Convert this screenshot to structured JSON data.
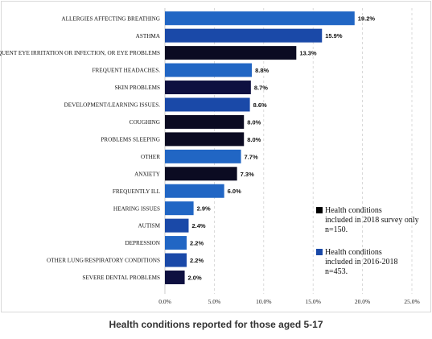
{
  "caption": "Health conditions reported for those aged 5-17",
  "chart_data": {
    "type": "bar",
    "orientation": "horizontal",
    "categories": [
      "ALLERGIES AFFECTING BREATHING",
      "ASTHMA",
      "FREQUENT EYE IRRITATION OR INFECTION, OR EYE PROBLEMS",
      "FREQUENT HEADACHES.",
      "SKIN PROBLEMS",
      "DEVELOPMENT/LEARNING ISSUES.",
      "COUGHING",
      "PROBLEMS SLEEPING",
      "OTHER",
      "ANXIETY",
      "FREQUENTLY ILL",
      "HEARING ISSUES",
      "AUTISM",
      "DEPRESSION",
      "OTHER LUNG/RESPIRATORY CONDITIONS",
      "SEVERE DENTAL PROBLEMS"
    ],
    "values": [
      19.2,
      15.9,
      13.3,
      8.8,
      8.7,
      8.6,
      8.0,
      8.0,
      7.7,
      7.3,
      6.0,
      2.9,
      2.4,
      2.2,
      2.2,
      2.0
    ],
    "value_labels": [
      "19.2%",
      "15.9%",
      "13.3%",
      "8.8%",
      "8.7%",
      "8.6%",
      "8.0%",
      "8.0%",
      "7.7%",
      "7.3%",
      "6.0%",
      "2.9%",
      "2.4%",
      "2.2%",
      "2.2%",
      "2.0%"
    ],
    "bar_colors": [
      "#2166c4",
      "#1a49a8",
      "#0b0b22",
      "#2166c4",
      "#0e1040",
      "#1a49a8",
      "#0b0b22",
      "#0b0b22",
      "#2166c4",
      "#0b0b22",
      "#2166c4",
      "#2166c4",
      "#1a49a8",
      "#2166c4",
      "#1a49a8",
      "#0e1040"
    ],
    "xlim": [
      0,
      25
    ],
    "x_ticks": [
      0,
      5,
      10,
      15,
      20,
      25
    ],
    "x_tick_labels": [
      "0.0%",
      "5.0%",
      "10.0%",
      "15.0%",
      "20.0%",
      "25.0%"
    ],
    "grid": "vertical dashed",
    "legend_position": "right",
    "legend": [
      {
        "color": "#000000",
        "lines": [
          "Health conditions",
          "included in 2018 survey only",
          "n=150."
        ]
      },
      {
        "color": "#1a49a8",
        "lines": [
          "Health conditions",
          "included in 2016-2018",
          "n=453."
        ]
      }
    ]
  }
}
